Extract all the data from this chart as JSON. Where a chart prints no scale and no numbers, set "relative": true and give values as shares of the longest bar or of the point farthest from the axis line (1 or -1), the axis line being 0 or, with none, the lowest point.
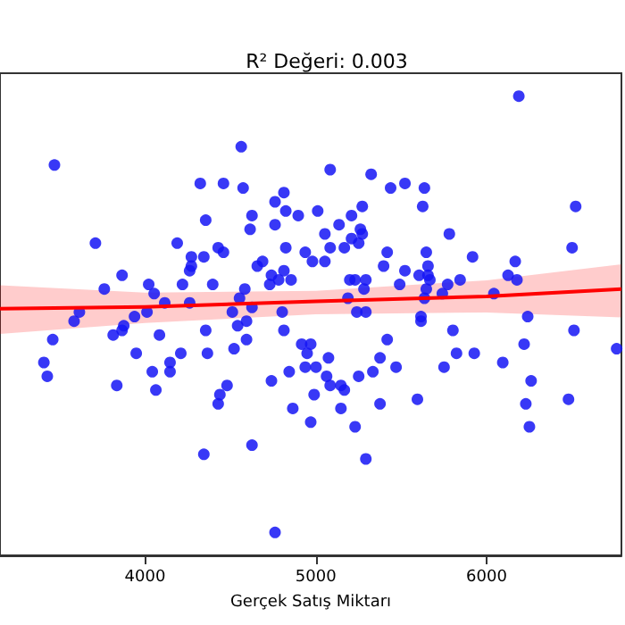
{
  "chart_data": {
    "type": "scatter",
    "title": "R² Değeri: 0.003",
    "xlabel": "Gerçek Satış Miktarı",
    "relative": true,
    "xlim": [
      3150,
      6790
    ],
    "xticks": [
      4000,
      5000,
      6000
    ],
    "grid": false,
    "marker": "circle",
    "series": [
      {
        "color": "#1515f5",
        "x": [
          3469,
          4563,
          4323,
          4459,
          4574,
          3709,
          4355,
          4626,
          4615,
          4761,
          4813,
          4824,
          4897,
          4761,
          4188,
          4428,
          4459,
          4271,
          4344,
          4271,
          4261,
          4824,
          4938,
          4980,
          4688,
          4657,
          4813,
          4740,
          4782,
          4855,
          4730,
          3865,
          4219,
          4396,
          4584,
          4021,
          3761,
          4053,
          4115,
          4261,
          4553,
          4626,
          4511,
          3615,
          3584,
          3938,
          4011,
          4803,
          4594,
          4542,
          4355,
          4813,
          3875,
          3865,
          3813,
          4084,
          3459,
          4917,
          4970,
          4949,
          3948,
          4209,
          4365,
          4521,
          6189,
          5084,
          5324,
          5438,
          5522,
          5636,
          5626,
          6522,
          5011,
          5209,
          5272,
          5136,
          5053,
          5261,
          5209,
          5272,
          5782,
          5084,
          5167,
          5251,
          5053,
          5418,
          5647,
          5918,
          6501,
          6168,
          5397,
          5522,
          5657,
          5657,
          5605,
          6126,
          6178,
          5199,
          5230,
          5293,
          5491,
          5668,
          5845,
          5772,
          5282,
          5188,
          5647,
          5741,
          5636,
          6043,
          5240,
          5293,
          5616,
          6241,
          5803,
          6512,
          5418,
          5824,
          5928,
          6220,
          6762,
          3407,
          3427,
          3834,
          4042,
          4063,
          4146,
          4146,
          4480,
          4438,
          4428,
          4344,
          4626,
          4740,
          4844,
          4865,
          4938,
          5001,
          4990,
          4970,
          4761,
          4594,
          5074,
          5063,
          5084,
          5147,
          5167,
          5147,
          5251,
          5334,
          5376,
          5470,
          5376,
          5230,
          5293,
          5595,
          5616,
          5751,
          6095,
          6261,
          6230,
          6251,
          6480
        ],
        "values": [
          0.85,
          0.89,
          0.81,
          0.81,
          0.8,
          0.68,
          0.73,
          0.74,
          0.71,
          0.77,
          0.79,
          0.75,
          0.74,
          0.72,
          0.68,
          0.67,
          0.66,
          0.65,
          0.65,
          0.63,
          0.62,
          0.67,
          0.66,
          0.64,
          0.64,
          0.63,
          0.62,
          0.61,
          0.6,
          0.6,
          0.59,
          0.61,
          0.59,
          0.59,
          0.58,
          0.59,
          0.58,
          0.57,
          0.55,
          0.55,
          0.56,
          0.54,
          0.53,
          0.53,
          0.51,
          0.52,
          0.53,
          0.53,
          0.51,
          0.5,
          0.49,
          0.49,
          0.5,
          0.49,
          0.48,
          0.48,
          0.47,
          0.46,
          0.46,
          0.44,
          0.44,
          0.44,
          0.44,
          0.45,
          1.0,
          0.84,
          0.83,
          0.8,
          0.81,
          0.8,
          0.76,
          0.76,
          0.75,
          0.74,
          0.76,
          0.72,
          0.7,
          0.71,
          0.69,
          0.7,
          0.7,
          0.67,
          0.67,
          0.68,
          0.64,
          0.66,
          0.66,
          0.65,
          0.67,
          0.64,
          0.63,
          0.62,
          0.63,
          0.61,
          0.61,
          0.61,
          0.6,
          0.6,
          0.6,
          0.6,
          0.59,
          0.6,
          0.6,
          0.59,
          0.58,
          0.56,
          0.58,
          0.57,
          0.56,
          0.57,
          0.53,
          0.53,
          0.52,
          0.52,
          0.49,
          0.49,
          0.47,
          0.44,
          0.44,
          0.46,
          0.45,
          0.42,
          0.39,
          0.37,
          0.4,
          0.36,
          0.42,
          0.4,
          0.37,
          0.35,
          0.33,
          0.22,
          0.24,
          0.38,
          0.4,
          0.32,
          0.41,
          0.41,
          0.35,
          0.29,
          0.05,
          0.47,
          0.43,
          0.39,
          0.37,
          0.37,
          0.36,
          0.32,
          0.39,
          0.4,
          0.43,
          0.41,
          0.33,
          0.28,
          0.21,
          0.34,
          0.51,
          0.41,
          0.42,
          0.38,
          0.33,
          0.28,
          0.34
        ]
      },
      {
        "type": "line",
        "color": "#ff0000",
        "marker": "none",
        "x": [
          3150,
          4000,
          5000,
          6000,
          6790
        ],
        "values": [
          0.537,
          0.541,
          0.553,
          0.564,
          0.58
        ],
        "lower": [
          0.482,
          0.506,
          0.525,
          0.529,
          0.518
        ],
        "upper": [
          0.588,
          0.572,
          0.576,
          0.599,
          0.634
        ]
      }
    ]
  }
}
